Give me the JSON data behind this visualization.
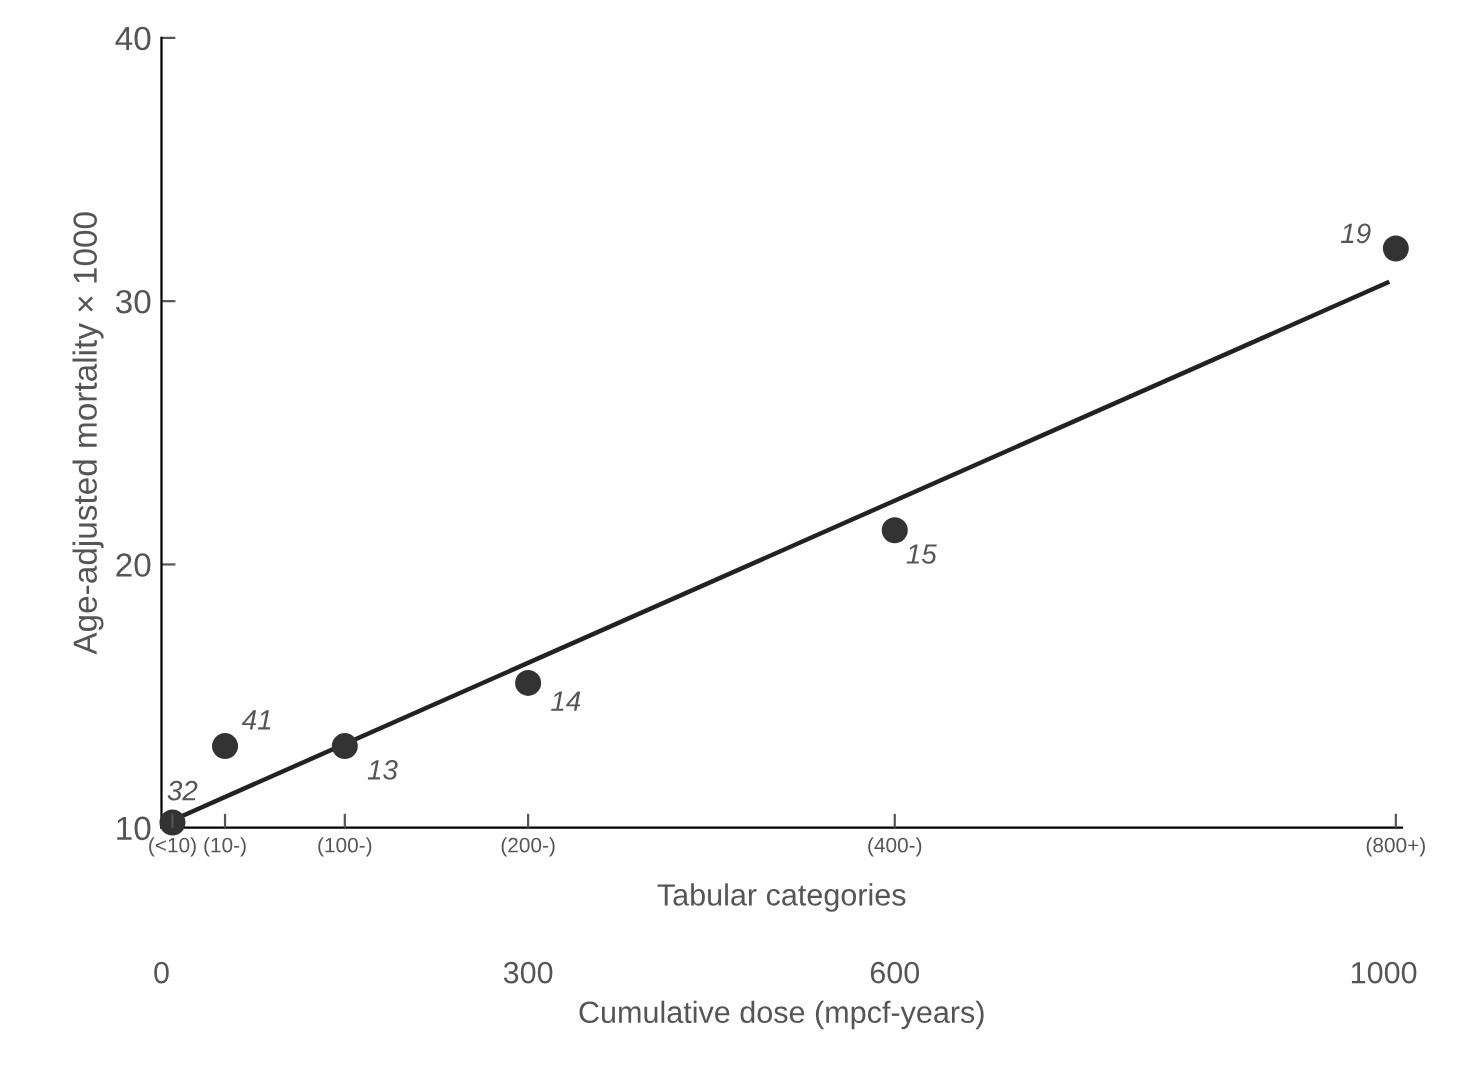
{
  "chart_data": {
    "type": "scatter",
    "xlabel": "Cumulative dose (mpcf-years)",
    "ylabel": "Age-adjusted mortality × 1000",
    "x2label": "Tabular categories",
    "xlim": [
      0,
      1015
    ],
    "ylim": [
      10,
      40
    ],
    "xticks": [
      0,
      300,
      600,
      1000
    ],
    "yticks": [
      10,
      20,
      30,
      40
    ],
    "series": [
      {
        "color": "#333333",
        "x": [
          9,
          52,
          150,
          300,
          600,
          1010
        ],
        "values": [
          10.2,
          13.1,
          13.1,
          15.5,
          21.3,
          32.0
        ]
      },
      {
        "type": "line",
        "marker": "none",
        "color": "#222222",
        "x": [
          0,
          1003
        ],
        "values": [
          10.1,
          30.7
        ]
      }
    ],
    "annotations": [
      {
        "text": "32",
        "x": 9,
        "y": 10.2
      },
      {
        "text": "41",
        "x": 52,
        "y": 13.1
      },
      {
        "text": "13",
        "x": 150,
        "y": 13.1
      },
      {
        "text": "14",
        "x": 300,
        "y": 15.5
      },
      {
        "text": "15",
        "x": 600,
        "y": 21.3
      },
      {
        "text": "19",
        "x": 1010,
        "y": 32.0
      },
      "(<10)",
      "(10-)",
      "(100-)",
      "(200-)",
      "(400-)",
      "(800+)"
    ],
    "marker": "circle",
    "grid": false,
    "legend": false
  }
}
